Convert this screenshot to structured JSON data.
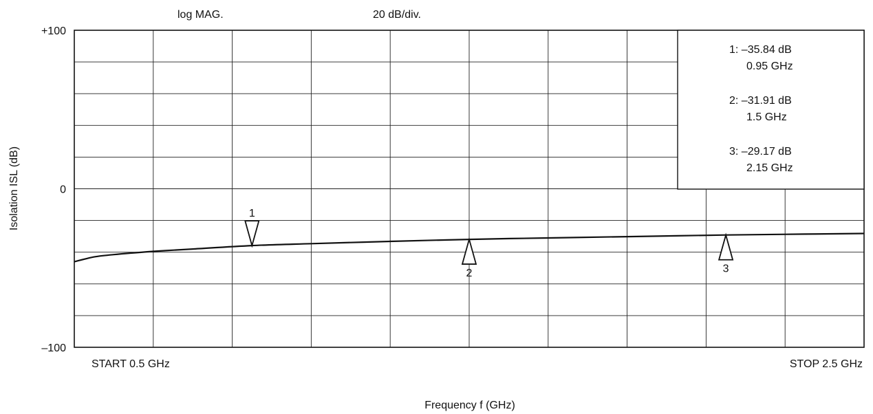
{
  "header": {
    "format_label": "log MAG.",
    "scale_label": "20 dB/div."
  },
  "chart_data": {
    "type": "line",
    "xlabel": "Frequency  f (GHz)",
    "ylabel": "Isolation  ISL (dB)",
    "xlim": [
      0.5,
      2.5
    ],
    "ylim": [
      -100,
      100
    ],
    "x_divisions": 10,
    "y_divisions": 10,
    "grid": true,
    "y_tick_labels": [
      "+100",
      "0",
      "–100"
    ],
    "start_label": "START  0.5 GHz",
    "stop_label": "STOP  2.5 GHz",
    "series": [
      {
        "x": [
          0.5,
          0.55,
          0.6,
          0.7,
          0.8,
          0.95,
          1.1,
          1.3,
          1.5,
          1.7,
          1.9,
          2.15,
          2.35,
          2.5
        ],
        "y": [
          -46,
          -43,
          -41.5,
          -39.5,
          -38,
          -35.84,
          -34.6,
          -33.2,
          -31.91,
          -31,
          -30.2,
          -29.17,
          -28.6,
          -28.2
        ]
      }
    ],
    "markers": [
      {
        "id": "1",
        "x": 0.95,
        "y": -35.84,
        "direction": "down",
        "value_label": "–35.84 dB",
        "freq_label": "0.95 GHz"
      },
      {
        "id": "2",
        "x": 1.5,
        "y": -31.91,
        "direction": "up",
        "value_label": "–31.91 dB",
        "freq_label": "1.5 GHz"
      },
      {
        "id": "3",
        "x": 2.15,
        "y": -29.17,
        "direction": "up",
        "value_label": "–29.17 dB",
        "freq_label": "2.15 GHz"
      }
    ],
    "marker_readout_placement": "top-right"
  }
}
